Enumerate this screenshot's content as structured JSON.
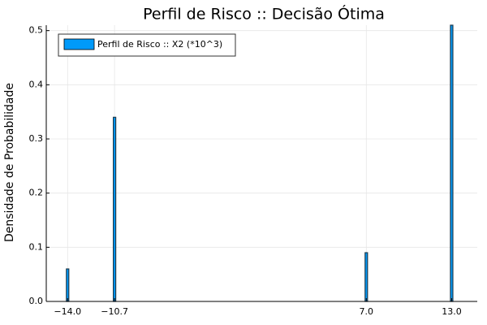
{
  "chart_data": {
    "type": "bar",
    "title": "Perfil de Risco :: Decisão Ótima",
    "xlabel": "",
    "ylabel": "Densidade de Probabilidade",
    "xlim": [
      -15.5,
      14.8
    ],
    "ylim": [
      0,
      0.51
    ],
    "x_ticks": [
      -14.0,
      -10.7,
      7.0,
      13.0
    ],
    "x_tick_labels": [
      "−14.0",
      "−10.7",
      "7.0",
      "13.0"
    ],
    "y_ticks": [
      0.0,
      0.1,
      0.2,
      0.3,
      0.4,
      0.5
    ],
    "y_tick_labels": [
      "0.0",
      "0.1",
      "0.2",
      "0.3",
      "0.4",
      "0.5"
    ],
    "grid": true,
    "legend_position": "top-left",
    "series": [
      {
        "name": "Perfil de Risco :: X2 (*10^3)",
        "color": "#009AFA",
        "edge_color": "#1f3b4d",
        "x": [
          -14.0,
          -10.7,
          7.0,
          13.0
        ],
        "values": [
          0.06,
          0.34,
          0.09,
          0.51
        ]
      }
    ]
  }
}
